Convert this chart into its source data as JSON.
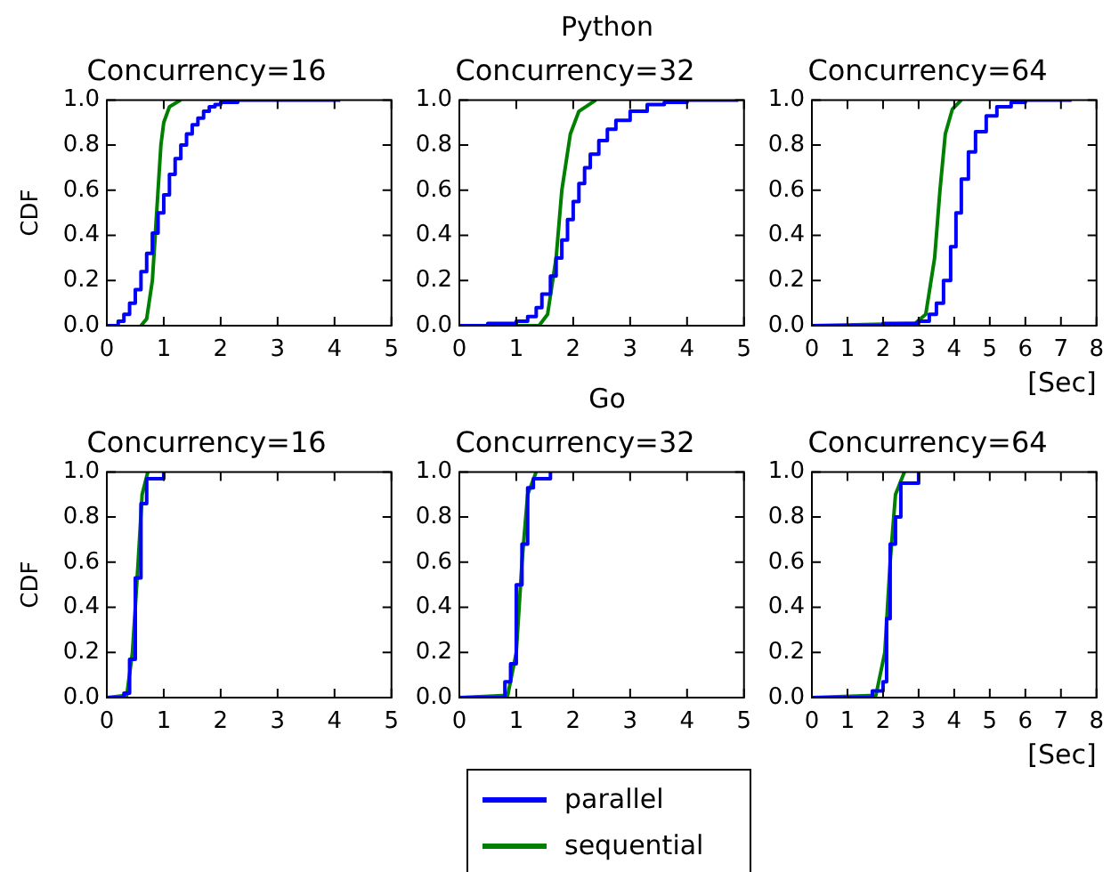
{
  "chart_data": [
    {
      "type": "line",
      "title": "Concurrency=16",
      "ylabel": "CDF",
      "annotations": [
        "Python"
      ],
      "legend": "bottom",
      "marker": "none",
      "grid": false,
      "xlim": [
        0,
        5
      ],
      "xticks": [
        0,
        1,
        2,
        3,
        4,
        5
      ],
      "ylim": [
        0,
        1
      ],
      "yticks": [
        {
          "value": 0,
          "label": "0.0"
        },
        {
          "value": 0.2,
          "label": "0.2"
        },
        {
          "value": 0.4,
          "label": "0.4"
        },
        {
          "value": 0.6,
          "label": "0.6"
        },
        {
          "value": 0.8,
          "label": "0.8"
        },
        {
          "value": 1,
          "label": "1.0"
        }
      ],
      "series": [
        {
          "name": "parallel",
          "type": "step",
          "color": "#0000ff",
          "x": [
            0,
            0.2,
            0.3,
            0.4,
            0.5,
            0.6,
            0.7,
            0.8,
            0.9,
            1.0,
            1.1,
            1.2,
            1.3,
            1.4,
            1.5,
            1.6,
            1.7,
            1.8,
            1.9,
            2.0,
            2.3,
            4.1
          ],
          "values": [
            0,
            0.02,
            0.05,
            0.1,
            0.16,
            0.24,
            0.32,
            0.41,
            0.5,
            0.58,
            0.67,
            0.74,
            0.8,
            0.85,
            0.89,
            0.92,
            0.95,
            0.97,
            0.98,
            0.99,
            1.0,
            1.0
          ]
        },
        {
          "name": "sequential",
          "type": "line",
          "color": "#008000",
          "x": [
            0.6,
            0.7,
            0.8,
            0.85,
            0.9,
            0.95,
            1.0,
            1.1,
            1.3
          ],
          "values": [
            0,
            0.03,
            0.2,
            0.4,
            0.6,
            0.8,
            0.9,
            0.97,
            1.0
          ]
        }
      ]
    },
    {
      "type": "line",
      "title": "Concurrency=32",
      "marker": "none",
      "grid": false,
      "xlim": [
        0,
        5
      ],
      "xticks": [
        0,
        1,
        2,
        3,
        4,
        5
      ],
      "ylim": [
        0,
        1
      ],
      "yticks": [
        {
          "value": 0,
          "label": "0.0"
        },
        {
          "value": 0.2,
          "label": "0.2"
        },
        {
          "value": 0.4,
          "label": "0.4"
        },
        {
          "value": 0.6,
          "label": "0.6"
        },
        {
          "value": 0.8,
          "label": "0.8"
        },
        {
          "value": 1,
          "label": "1.0"
        }
      ],
      "series": [
        {
          "type": "step",
          "color": "#0000ff",
          "x": [
            0,
            0.5,
            1.0,
            1.2,
            1.35,
            1.45,
            1.6,
            1.7,
            1.8,
            1.9,
            2.0,
            2.1,
            2.2,
            2.3,
            2.45,
            2.6,
            2.75,
            3.0,
            3.3,
            3.6,
            4.0,
            4.9
          ],
          "values": [
            0,
            0.01,
            0.02,
            0.04,
            0.08,
            0.14,
            0.22,
            0.3,
            0.38,
            0.47,
            0.55,
            0.63,
            0.7,
            0.76,
            0.82,
            0.87,
            0.91,
            0.95,
            0.98,
            0.99,
            1.0,
            1.0
          ]
        },
        {
          "type": "line",
          "color": "#008000",
          "x": [
            0,
            1.4,
            1.55,
            1.7,
            1.8,
            1.95,
            2.1,
            2.4
          ],
          "values": [
            0,
            0,
            0.05,
            0.3,
            0.6,
            0.85,
            0.95,
            1.0
          ]
        }
      ]
    },
    {
      "type": "line",
      "title": "Concurrency=64",
      "xlabel": "[Sec]",
      "marker": "none",
      "grid": false,
      "xlim": [
        0,
        8
      ],
      "xticks": [
        0,
        1,
        2,
        3,
        4,
        5,
        6,
        7,
        8
      ],
      "ylim": [
        0,
        1
      ],
      "yticks": [
        {
          "value": 0,
          "label": "0.0"
        },
        {
          "value": 0.2,
          "label": "0.2"
        },
        {
          "value": 0.4,
          "label": "0.4"
        },
        {
          "value": 0.6,
          "label": "0.6"
        },
        {
          "value": 0.8,
          "label": "0.8"
        },
        {
          "value": 1,
          "label": "1.0"
        }
      ],
      "series": [
        {
          "type": "step",
          "color": "#0000ff",
          "x": [
            0,
            2.0,
            3.0,
            3.3,
            3.5,
            3.7,
            3.9,
            4.05,
            4.2,
            4.4,
            4.6,
            4.9,
            5.2,
            5.6,
            6.0,
            7.3
          ],
          "values": [
            0,
            0.01,
            0.02,
            0.05,
            0.1,
            0.2,
            0.35,
            0.5,
            0.65,
            0.77,
            0.86,
            0.93,
            0.97,
            0.99,
            1.0,
            1.0
          ]
        },
        {
          "type": "line",
          "color": "#008000",
          "x": [
            0,
            2.9,
            3.2,
            3.45,
            3.6,
            3.75,
            3.95,
            4.2
          ],
          "values": [
            0,
            0.01,
            0.05,
            0.3,
            0.6,
            0.85,
            0.96,
            1.0
          ]
        }
      ]
    },
    {
      "type": "line",
      "title": "Concurrency=16",
      "ylabel": "CDF",
      "annotations": [
        "Go"
      ],
      "marker": "none",
      "grid": false,
      "xlim": [
        0,
        5
      ],
      "xticks": [
        0,
        1,
        2,
        3,
        4,
        5
      ],
      "ylim": [
        0,
        1
      ],
      "yticks": [
        {
          "value": 0,
          "label": "0.0"
        },
        {
          "value": 0.2,
          "label": "0.2"
        },
        {
          "value": 0.4,
          "label": "0.4"
        },
        {
          "value": 0.6,
          "label": "0.6"
        },
        {
          "value": 0.8,
          "label": "0.8"
        },
        {
          "value": 1,
          "label": "1.0"
        }
      ],
      "series": [
        {
          "type": "step",
          "color": "#0000ff",
          "x": [
            0,
            0.3,
            0.4,
            0.5,
            0.6,
            0.7,
            1.0
          ],
          "values": [
            0,
            0.02,
            0.17,
            0.53,
            0.86,
            0.97,
            1.0
          ]
        },
        {
          "type": "line",
          "color": "#008000",
          "x": [
            0,
            0.35,
            0.45,
            0.55,
            0.62,
            0.72
          ],
          "values": [
            0,
            0.01,
            0.2,
            0.6,
            0.9,
            1.0
          ]
        }
      ]
    },
    {
      "type": "line",
      "title": "Concurrency=32",
      "marker": "none",
      "grid": false,
      "xlim": [
        0,
        5
      ],
      "xticks": [
        0,
        1,
        2,
        3,
        4,
        5
      ],
      "ylim": [
        0,
        1
      ],
      "yticks": [
        {
          "value": 0,
          "label": "0.0"
        },
        {
          "value": 0.2,
          "label": "0.2"
        },
        {
          "value": 0.4,
          "label": "0.4"
        },
        {
          "value": 0.6,
          "label": "0.6"
        },
        {
          "value": 0.8,
          "label": "0.8"
        },
        {
          "value": 1,
          "label": "1.0"
        }
      ],
      "series": [
        {
          "type": "step",
          "color": "#0000ff",
          "x": [
            0,
            0.8,
            0.9,
            1.0,
            1.1,
            1.2,
            1.3,
            1.6
          ],
          "values": [
            0,
            0.07,
            0.15,
            0.5,
            0.68,
            0.93,
            0.97,
            1.0
          ]
        },
        {
          "type": "line",
          "color": "#008000",
          "x": [
            0,
            0.85,
            1.0,
            1.1,
            1.2,
            1.35
          ],
          "values": [
            0,
            0.01,
            0.2,
            0.6,
            0.9,
            1.0
          ]
        }
      ]
    },
    {
      "type": "line",
      "title": "Concurrency=64",
      "xlabel": "[Sec]",
      "marker": "none",
      "grid": false,
      "xlim": [
        0,
        8
      ],
      "xticks": [
        0,
        1,
        2,
        3,
        4,
        5,
        6,
        7,
        8
      ],
      "ylim": [
        0,
        1
      ],
      "yticks": [
        {
          "value": 0,
          "label": "0.0"
        },
        {
          "value": 0.2,
          "label": "0.2"
        },
        {
          "value": 0.4,
          "label": "0.4"
        },
        {
          "value": 0.6,
          "label": "0.6"
        },
        {
          "value": 0.8,
          "label": "0.8"
        },
        {
          "value": 1,
          "label": "1.0"
        }
      ],
      "series": [
        {
          "type": "step",
          "color": "#0000ff",
          "x": [
            0,
            1.7,
            2.0,
            2.1,
            2.2,
            2.35,
            2.5,
            3.0
          ],
          "values": [
            0,
            0.03,
            0.07,
            0.35,
            0.68,
            0.8,
            0.95,
            1.0
          ]
        },
        {
          "type": "line",
          "color": "#008000",
          "x": [
            0,
            1.8,
            2.05,
            2.2,
            2.35,
            2.6
          ],
          "values": [
            0,
            0.01,
            0.2,
            0.6,
            0.9,
            1.0
          ]
        }
      ]
    }
  ]
}
